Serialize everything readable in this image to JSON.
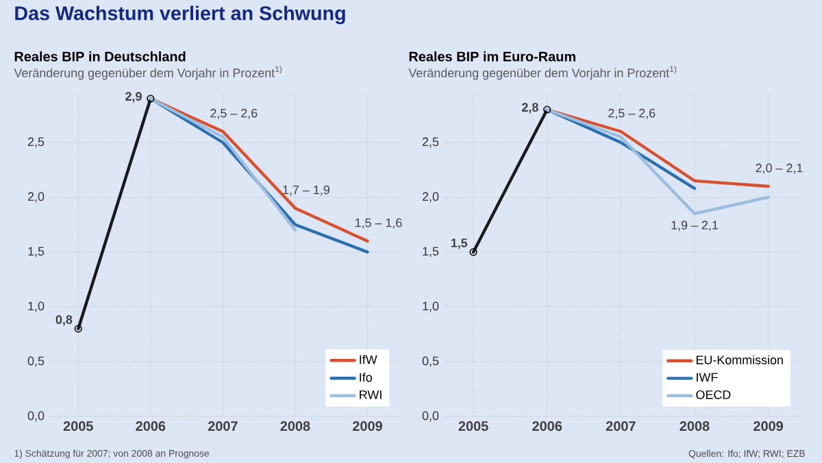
{
  "chart_data": [
    {
      "type": "line",
      "title": "Reales BIP in Deutschland",
      "subtitle": "Veränderung gegenüber dem Vorjahr in Prozent$^{1)}$",
      "categories": [
        "2005",
        "2006",
        "2007",
        "2008",
        "2009"
      ],
      "series": [
        {
          "color": "#1a1a1a",
          "marker": "circle",
          "values": [
            0.8,
            2.9,
            null,
            null,
            null
          ]
        },
        {
          "name": "IfW",
          "color": "#d9502e",
          "values": [
            null,
            2.9,
            2.6,
            1.9,
            1.6
          ]
        },
        {
          "name": "Ifo",
          "color": "#2a6fb0",
          "values": [
            null,
            2.9,
            2.5,
            1.75,
            1.5
          ]
        },
        {
          "name": "RWI",
          "color": "#9bbde0",
          "values": [
            null,
            2.9,
            2.55,
            1.7,
            null
          ]
        }
      ],
      "ylim": [
        0,
        2.95
      ],
      "yticks": [
        {
          "value": 0,
          "label": "0,0"
        },
        {
          "value": 0.5,
          "label": "0,5"
        },
        {
          "value": 1,
          "label": "1,0"
        },
        {
          "value": 1.5,
          "label": "1,5"
        },
        {
          "value": 2,
          "label": "2,0"
        },
        {
          "value": 2.5,
          "label": "2,5"
        }
      ],
      "grid": true,
      "legend": "bottom right",
      "annotations": [
        "Das Wachstum verliert an Schwung",
        "1) Schätzung für 2007; von 2008 an Prognose",
        {
          "text": "0,8",
          "x": "2005",
          "y": 0.8
        },
        {
          "text": "2,9",
          "x": "2006",
          "y": 2.9
        },
        {
          "text": "2,5 – 2,6",
          "x": "2007",
          "y": 2.6
        },
        {
          "text": "1,7 – 1,9",
          "x": "2008",
          "y": 1.9
        },
        {
          "text": "1,5 – 1,6",
          "x": "2009",
          "y": 1.6
        }
      ]
    },
    {
      "type": "line",
      "title": "Reales BIP im Euro-Raum",
      "subtitle": "Veränderung gegenüber dem Vorjahr in Prozent$^{1)}$",
      "categories": [
        "2005",
        "2006",
        "2007",
        "2008",
        "2009"
      ],
      "series": [
        {
          "color": "#1a1a1a",
          "marker": "circle",
          "values": [
            1.5,
            2.8,
            null,
            null,
            null
          ]
        },
        {
          "name": "EU-Kommission",
          "color": "#d9502e",
          "values": [
            null,
            2.8,
            2.6,
            2.15,
            2.1
          ]
        },
        {
          "name": "IWF",
          "color": "#2a6fb0",
          "values": [
            null,
            2.8,
            2.5,
            2.08,
            null
          ]
        },
        {
          "name": "OECD",
          "color": "#9bbde0",
          "values": [
            null,
            2.8,
            2.55,
            1.85,
            2.0
          ]
        }
      ],
      "ylim": [
        0,
        2.95
      ],
      "yticks": [
        {
          "value": 0,
          "label": "0,0"
        },
        {
          "value": 0.5,
          "label": "0,5"
        },
        {
          "value": 1,
          "label": "1,0"
        },
        {
          "value": 1.5,
          "label": "1,5"
        },
        {
          "value": 2,
          "label": "2,0"
        },
        {
          "value": 2.5,
          "label": "2,5"
        }
      ],
      "grid": true,
      "legend": "bottom right",
      "annotations": [
        "Quellen: Ifo; IfW; RWI; EZB",
        {
          "text": "1,5",
          "x": "2005",
          "y": 1.5
        },
        {
          "text": "2,8",
          "x": "2006",
          "y": 2.8
        },
        {
          "text": "2,5 – 2,6",
          "x": "2007",
          "y": 2.6
        },
        {
          "text": "1,9 – 2,1",
          "x": "2008",
          "y": 1.9
        },
        {
          "text": "2,0 – 2,1",
          "x": "2009",
          "y": 2.1
        }
      ]
    }
  ]
}
